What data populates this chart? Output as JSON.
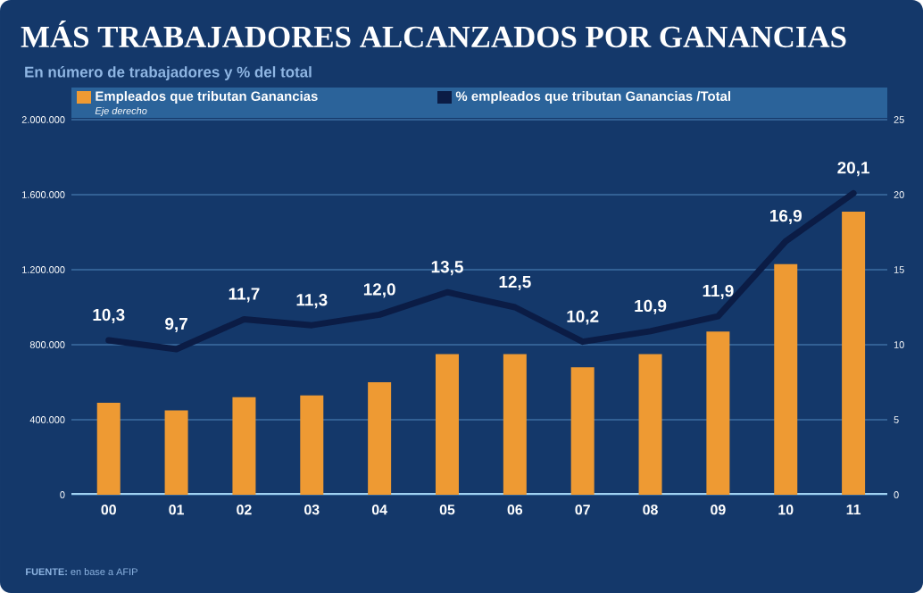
{
  "chart_data": {
    "type": "bar",
    "title": "MÁS TRABAJADORES ALCANZADOS POR GANANCIAS",
    "subtitle": "En número de trabajadores y % del total",
    "categories": [
      "00",
      "01",
      "02",
      "03",
      "04",
      "05",
      "06",
      "07",
      "08",
      "09",
      "10",
      "11"
    ],
    "series": [
      {
        "name": "Empleados que tributan Ganancias",
        "color": "#ee9a33",
        "values": [
          490000,
          450000,
          520000,
          530000,
          600000,
          750000,
          750000,
          680000,
          750000,
          870000,
          1230000,
          1510000
        ]
      },
      {
        "name": "% empleados que tributan Ganancias /Total",
        "type": "line",
        "axis": "y2",
        "color": "#0b1c45",
        "values": [
          10.3,
          9.7,
          11.7,
          11.3,
          12.0,
          13.5,
          12.5,
          10.2,
          10.9,
          11.9,
          16.9,
          20.1
        ],
        "value_labels": [
          "10,3",
          "9,7",
          "11,7",
          "11,3",
          "12,0",
          "13,5",
          "12,5",
          "10,2",
          "10,9",
          "11,9",
          "16,9",
          "20,1"
        ]
      }
    ],
    "ylim": [
      0,
      2000000
    ],
    "yticks": [
      {
        "value": 0,
        "label": "0"
      },
      {
        "value": 400000,
        "label": "400.000"
      },
      {
        "value": 800000,
        "label": "800.000"
      },
      {
        "value": 1200000,
        "label": "1.200.000"
      },
      {
        "value": 1600000,
        "label": "1.600.000"
      },
      {
        "value": 2000000,
        "label": "2.000.000"
      }
    ],
    "y2lim": [
      0,
      25
    ],
    "y2ticks": [
      0,
      5,
      10,
      15,
      20,
      25
    ],
    "grid": "y",
    "legend": "top",
    "marker": "none",
    "line_style": "solid",
    "annotations": [
      "Eje derecho",
      "**FUENTE:** en base a AFIP"
    ]
  }
}
